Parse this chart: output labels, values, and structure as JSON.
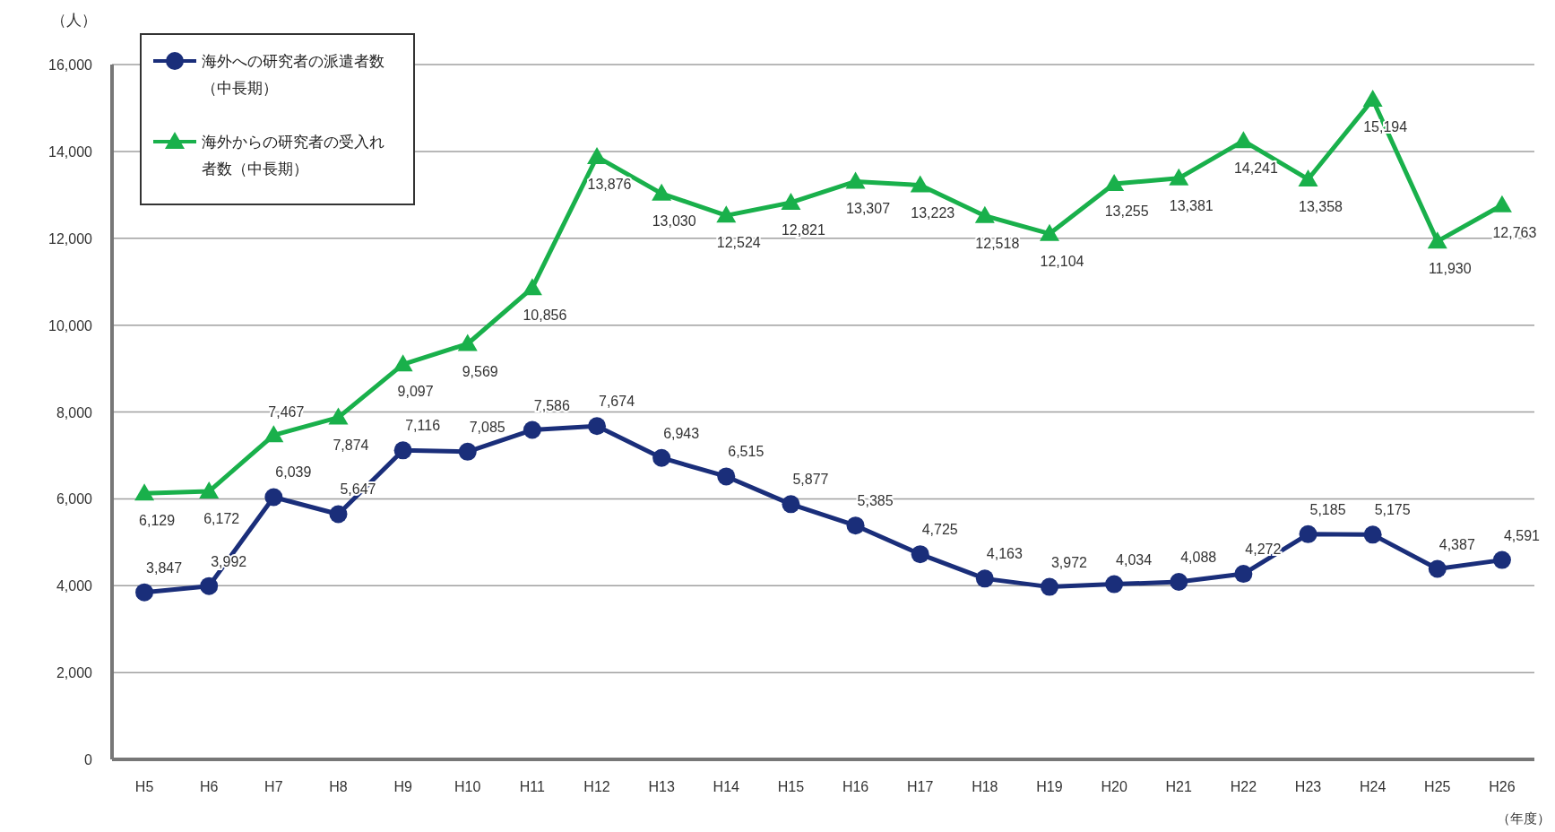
{
  "chart_data": {
    "type": "line",
    "ylabel": "（人）",
    "xlabel": "（年度）",
    "categories": [
      "H5",
      "H6",
      "H7",
      "H8",
      "H9",
      "H10",
      "H11",
      "H12",
      "H13",
      "H14",
      "H15",
      "H16",
      "H17",
      "H18",
      "H19",
      "H20",
      "H21",
      "H22",
      "H23",
      "H24",
      "H25",
      "H26"
    ],
    "series": [
      {
        "name": "海外への研究者の派遣者数（中長期）",
        "color": "#1a2e7a",
        "marker": "circle",
        "values": [
          3847,
          3992,
          6039,
          5647,
          7116,
          7085,
          7586,
          7674,
          6943,
          6515,
          5877,
          5385,
          4725,
          4163,
          3972,
          4034,
          4088,
          4272,
          5185,
          5175,
          4387,
          4591
        ],
        "value_labels": [
          "3,847",
          "3,992",
          "6,039",
          "5,647",
          "7,116",
          "7,085",
          "7,586",
          "7,674",
          "6,943",
          "6,515",
          "5,877",
          "5,385",
          "4,725",
          "4,163",
          "3,972",
          "4,034",
          "4,088",
          "4,272",
          "5,185",
          "5,175",
          "4,387",
          "4,591"
        ]
      },
      {
        "name": "海外からの研究者の受入れ者数（中長期）",
        "color": "#19b04b",
        "marker": "triangle",
        "values": [
          6129,
          6172,
          7467,
          7874,
          9097,
          9569,
          10856,
          13876,
          13030,
          12524,
          12821,
          13307,
          13223,
          12518,
          12104,
          13255,
          13381,
          14241,
          13358,
          15194,
          11930,
          12763
        ],
        "value_labels": [
          "6,129",
          "6,172",
          "7,467",
          "7,874",
          "9,097",
          "9,569",
          "10,856",
          "13,876",
          "13,030",
          "12,524",
          "12,821",
          "13,307",
          "13,223",
          "12,518",
          "12,104",
          "13,255",
          "13,381",
          "14,241",
          "13,358",
          "15,194",
          "11,930",
          "12,763"
        ]
      }
    ],
    "ylim": [
      0,
      16000
    ],
    "yticks": [
      {
        "value": 0,
        "label": "0"
      },
      {
        "value": 2000,
        "label": "2,000"
      },
      {
        "value": 4000,
        "label": "4,000"
      },
      {
        "value": 6000,
        "label": "6,000"
      },
      {
        "value": 8000,
        "label": "8,000"
      },
      {
        "value": 10000,
        "label": "10,000"
      },
      {
        "value": 12000,
        "label": "12,000"
      },
      {
        "value": 14000,
        "label": "14,000"
      },
      {
        "value": 16000,
        "label": "16,000"
      }
    ],
    "grid": "y",
    "legend": "top left"
  }
}
